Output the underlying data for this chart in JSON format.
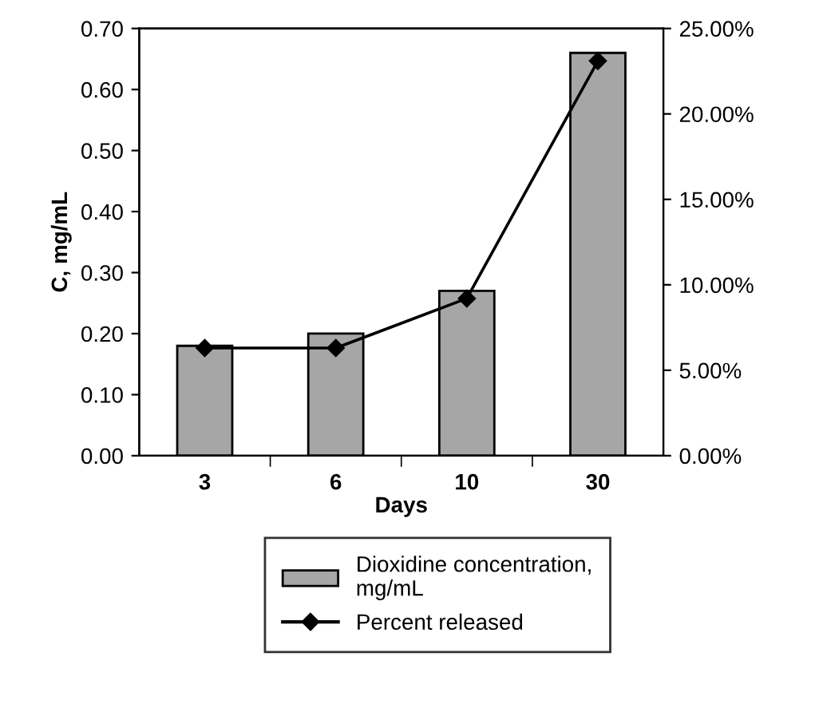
{
  "chart_data": {
    "type": "bar",
    "categories": [
      "3",
      "6",
      "10",
      "30"
    ],
    "xlabel": "Days",
    "ylabel": "C, mg/mL",
    "ylim": [
      0,
      0.7
    ],
    "yticks": [
      {
        "value": 0,
        "label": "0.00"
      },
      {
        "value": 0.1,
        "label": "0.10"
      },
      {
        "value": 0.2,
        "label": "0.20"
      },
      {
        "value": 0.3,
        "label": "0.30"
      },
      {
        "value": 0.4,
        "label": "0.40"
      },
      {
        "value": 0.5,
        "label": "0.50"
      },
      {
        "value": 0.6,
        "label": "0.60"
      },
      {
        "value": 0.7,
        "label": "0.70"
      }
    ],
    "y2lim": [
      0,
      25
    ],
    "y2ticks": [
      {
        "value": 0,
        "label": "0.00%"
      },
      {
        "value": 5,
        "label": "5.00%"
      },
      {
        "value": 10,
        "label": "10.00%"
      },
      {
        "value": 15,
        "label": "15.00%"
      },
      {
        "value": 20,
        "label": "20.00%"
      },
      {
        "value": 25,
        "label": "25.00%"
      }
    ],
    "series": [
      {
        "name": "Dioxidine concentration,\nmg/mL",
        "color": "#a6a6a6",
        "values": [
          0.18,
          0.2,
          0.27,
          0.66
        ]
      },
      {
        "name": "Percent released",
        "type": "line",
        "axis": "y2",
        "color": "#000000",
        "marker": "diamond",
        "values": [
          6.3,
          6.3,
          9.2,
          23.1
        ]
      }
    ],
    "legend": "bottom",
    "grid": false
  }
}
